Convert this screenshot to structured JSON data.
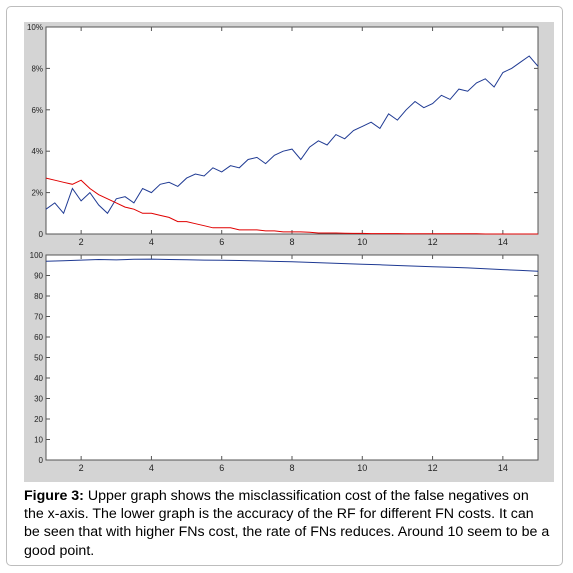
{
  "caption": {
    "label": "Figure 3:",
    "text": "Upper graph shows the misclassification cost of the false negatives on the x-axis. The lower graph is the accuracy of the RF for different FN costs. It can be seen that with higher FNs cost, the rate of FNs reduces. Around 10 seem to be a good point."
  },
  "chart_data": [
    {
      "type": "line",
      "xlim": [
        1,
        15
      ],
      "ylim": [
        0,
        10
      ],
      "x_ticks": [
        "2",
        "4",
        "6",
        "8",
        "10",
        "12",
        "14"
      ],
      "y_ticks": [
        "0",
        "2%",
        "4%",
        "6%",
        "8%",
        "10%"
      ],
      "grid": false,
      "series": [
        {
          "color": "#1f3a93",
          "x": [
            1,
            1.25,
            1.5,
            1.75,
            2,
            2.25,
            2.5,
            2.75,
            3,
            3.25,
            3.5,
            3.75,
            4,
            4.25,
            4.5,
            4.75,
            5,
            5.25,
            5.5,
            5.75,
            6,
            6.25,
            6.5,
            6.75,
            7,
            7.25,
            7.5,
            7.75,
            8,
            8.25,
            8.5,
            8.75,
            9,
            9.25,
            9.5,
            9.75,
            10,
            10.25,
            10.5,
            10.75,
            11,
            11.25,
            11.5,
            11.75,
            12,
            12.25,
            12.5,
            12.75,
            13,
            13.25,
            13.5,
            13.75,
            14,
            14.25,
            14.5,
            14.75,
            15
          ],
          "y": [
            1.2,
            1.5,
            1.0,
            2.2,
            1.6,
            2.0,
            1.4,
            1.0,
            1.7,
            1.8,
            1.5,
            2.2,
            2.0,
            2.4,
            2.5,
            2.3,
            2.7,
            2.9,
            2.8,
            3.2,
            3.0,
            3.3,
            3.2,
            3.6,
            3.7,
            3.4,
            3.8,
            4.0,
            4.1,
            3.6,
            4.2,
            4.5,
            4.3,
            4.8,
            4.6,
            5.0,
            5.2,
            5.4,
            5.1,
            5.8,
            5.5,
            6.0,
            6.4,
            6.1,
            6.3,
            6.7,
            6.5,
            7.0,
            6.9,
            7.3,
            7.5,
            7.1,
            7.8,
            8.0,
            8.3,
            8.6,
            8.1
          ]
        },
        {
          "color": "#e00000",
          "x": [
            1,
            1.25,
            1.5,
            1.75,
            2,
            2.25,
            2.5,
            2.75,
            3,
            3.25,
            3.5,
            3.75,
            4,
            4.25,
            4.5,
            4.75,
            5,
            5.25,
            5.5,
            5.75,
            6,
            6.25,
            6.5,
            6.75,
            7,
            7.25,
            7.5,
            7.75,
            8,
            8.25,
            8.5,
            8.75,
            9,
            9.25,
            9.5,
            9.75,
            10,
            10.25,
            10.5,
            10.75,
            11,
            11.25,
            11.5,
            11.75,
            12,
            12.25,
            12.5,
            12.75,
            13,
            13.25,
            13.5,
            13.75,
            14,
            14.25,
            14.5,
            14.75,
            15
          ],
          "y": [
            2.7,
            2.6,
            2.5,
            2.4,
            2.6,
            2.2,
            1.9,
            1.7,
            1.5,
            1.3,
            1.2,
            1.0,
            1.0,
            0.9,
            0.8,
            0.6,
            0.6,
            0.5,
            0.4,
            0.3,
            0.3,
            0.3,
            0.2,
            0.2,
            0.2,
            0.15,
            0.15,
            0.1,
            0.1,
            0.1,
            0.08,
            0.05,
            0.05,
            0.05,
            0.04,
            0.03,
            0.03,
            0.02,
            0.02,
            0.02,
            0.02,
            0.01,
            0.01,
            0.01,
            0.01,
            0.01,
            0.01,
            0.01,
            0.01,
            0.01,
            0,
            0,
            0,
            0,
            0,
            0,
            0
          ]
        }
      ]
    },
    {
      "type": "line",
      "xlim": [
        1,
        15
      ],
      "ylim": [
        0,
        100
      ],
      "x_ticks": [
        "2",
        "4",
        "6",
        "8",
        "10",
        "12",
        "14"
      ],
      "y_ticks": [
        "0",
        "10",
        "20",
        "30",
        "40",
        "50",
        "60",
        "70",
        "80",
        "90",
        "100"
      ],
      "grid": false,
      "series": [
        {
          "color": "#1f3a93",
          "x": [
            1,
            1.5,
            2,
            2.5,
            3,
            3.5,
            4,
            4.5,
            5,
            5.5,
            6,
            6.5,
            7,
            7.5,
            8,
            8.5,
            9,
            9.5,
            10,
            10.5,
            11,
            11.5,
            12,
            12.5,
            13,
            13.5,
            14,
            14.5,
            15
          ],
          "y": [
            97.0,
            97.2,
            97.5,
            97.8,
            97.6,
            97.9,
            98.0,
            97.8,
            97.7,
            97.5,
            97.4,
            97.3,
            97.1,
            96.9,
            96.7,
            96.4,
            96.1,
            95.8,
            95.5,
            95.2,
            94.9,
            94.6,
            94.3,
            94.0,
            93.7,
            93.3,
            92.9,
            92.5,
            92.1
          ]
        }
      ]
    }
  ]
}
